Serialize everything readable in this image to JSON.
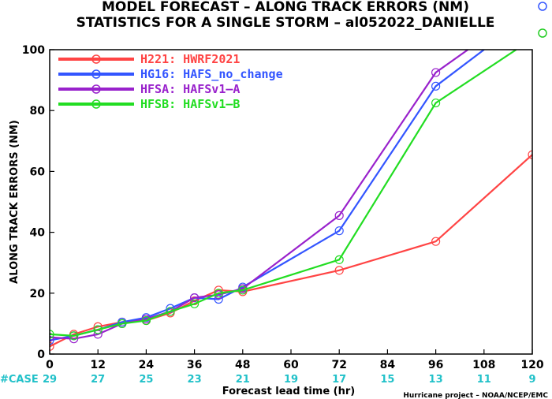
{
  "title_line1": "MODEL FORECAST – ALONG TRACK ERRORS (NM)",
  "title_line2": "STATISTICS FOR A SINGLE STORM – al052022_DANIELLE",
  "credit": "Hurricane project – NOAA/NCEP/EMC",
  "case_label": "#CASE",
  "case_x": [
    0,
    12,
    24,
    36,
    48,
    60,
    72,
    84,
    96,
    108,
    120
  ],
  "case_counts": [
    "29",
    "27",
    "25",
    "23",
    "21",
    "19",
    "17",
    "15",
    "13",
    "11",
    "9"
  ],
  "corner_colors": [
    "#3355ff",
    "#22cc22"
  ],
  "chart_data": {
    "type": "line",
    "xlabel": "Forecast lead time (hr)",
    "ylabel": "ALONG TRACK ERRORS (NM)",
    "xlim": [
      0,
      120
    ],
    "ylim": [
      0,
      100
    ],
    "xticks": [
      0,
      12,
      24,
      36,
      48,
      60,
      72,
      84,
      96,
      108,
      120
    ],
    "yticks": [
      0,
      20,
      40,
      60,
      80,
      100
    ],
    "legend_position": "top-left",
    "series": [
      {
        "name": "H221: HWRF2021",
        "color": "#ff4444",
        "x": [
          0,
          6,
          12,
          18,
          24,
          30,
          36,
          42,
          48,
          72,
          96,
          120
        ],
        "y": [
          2.5,
          6.5,
          9,
          10.5,
          11,
          13.5,
          17.5,
          21,
          20.5,
          27.5,
          37,
          65.5
        ]
      },
      {
        "name": "HG16: HAFS_no_change",
        "color": "#3355ff",
        "x": [
          0,
          6,
          12,
          18,
          24,
          30,
          36,
          42,
          48,
          72,
          96,
          108
        ],
        "y": [
          4.5,
          6,
          8,
          10.5,
          12,
          15,
          18.5,
          18,
          22,
          40.5,
          88,
          100
        ]
      },
      {
        "name": "HFSA: HAFSv1–A",
        "color": "#9922cc",
        "x": [
          0,
          6,
          12,
          18,
          24,
          30,
          36,
          42,
          48,
          72,
          96,
          104
        ],
        "y": [
          5.5,
          5,
          6.5,
          10,
          11.5,
          14,
          18.5,
          19.5,
          21.5,
          45.5,
          92.5,
          100
        ]
      },
      {
        "name": "HFSB: HAFSv1–B",
        "color": "#22dd22",
        "x": [
          0,
          6,
          12,
          18,
          24,
          30,
          36,
          42,
          48,
          72,
          96,
          116
        ],
        "y": [
          6.5,
          6,
          8,
          10,
          11,
          14,
          16.5,
          20,
          21,
          31,
          82.5,
          100
        ]
      }
    ]
  }
}
